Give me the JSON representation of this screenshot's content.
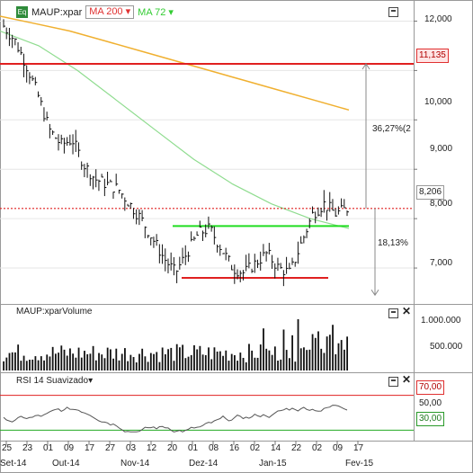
{
  "header": {
    "logo": "Eq",
    "symbol": "MAUP:xpar",
    "ma1": "MA 200",
    "ma2": "MA 72",
    "ma1_color": "#e03030",
    "ma2_color": "#33cc33",
    "caret": "▾"
  },
  "price_axis": {
    "labels": [
      "12,000",
      "11,135",
      "10,000",
      "9,000",
      "8,206",
      "8,000",
      "7,000"
    ],
    "current_price": "8,206",
    "resistance_price": "11,135"
  },
  "annotations": {
    "up_move": "36,27%(2",
    "down_move": "18,13%"
  },
  "volume_panel": {
    "title": "MAUP:xparVolume",
    "labels": [
      "1.000.000",
      "500.000"
    ]
  },
  "rsi_panel": {
    "title": "RSI 14 Suavizado",
    "labels": [
      "70,00",
      "50,00",
      "30,00"
    ]
  },
  "time_axis": {
    "days": [
      "25",
      "23",
      "01",
      "09",
      "17",
      "27",
      "03",
      "12",
      "20",
      "01",
      "08",
      "16",
      "02",
      "14",
      "22",
      "02",
      "09",
      "17"
    ],
    "months": [
      "Set-14",
      "Out-14",
      "Nov-14",
      "Dez-14",
      "Jan-15",
      "Fev-15"
    ]
  },
  "chart_data": {
    "type": "line",
    "symbol": "MAUP:xpar",
    "price": {
      "x": [
        "Set-14",
        "Out-14",
        "Nov-14",
        "Dez-14",
        "Jan-15",
        "Fev-15"
      ],
      "series_close": [
        11.9,
        11.6,
        11.1,
        10.5,
        9.8,
        9.5,
        9.6,
        9.1,
        8.8,
        8.7,
        8.6,
        8.3,
        8.0,
        7.6,
        7.2,
        6.9,
        7.3,
        7.7,
        7.8,
        7.4,
        7.0,
        6.9,
        7.1,
        7.3,
        7.0,
        6.9,
        7.5,
        8.1,
        8.3,
        8.1,
        8.2
      ]
    },
    "ma200": [
      12.1,
      11.95,
      11.8,
      11.6,
      11.4,
      11.2,
      11.0,
      10.8,
      10.6,
      10.4,
      10.2
    ],
    "ma72": [
      11.8,
      11.5,
      11.0,
      10.4,
      9.8,
      9.2,
      8.7,
      8.3,
      8.0,
      7.8
    ],
    "levels": {
      "resistance": 11.135,
      "current": 8.206,
      "support": 6.8,
      "neckline": 7.85
    },
    "ylim": [
      6.4,
      12.3
    ],
    "y_ticks": [
      7,
      8,
      9,
      10,
      11,
      12
    ],
    "volume_ticks": [
      500000,
      1000000
    ],
    "rsi_levels": [
      30,
      50,
      70
    ]
  }
}
